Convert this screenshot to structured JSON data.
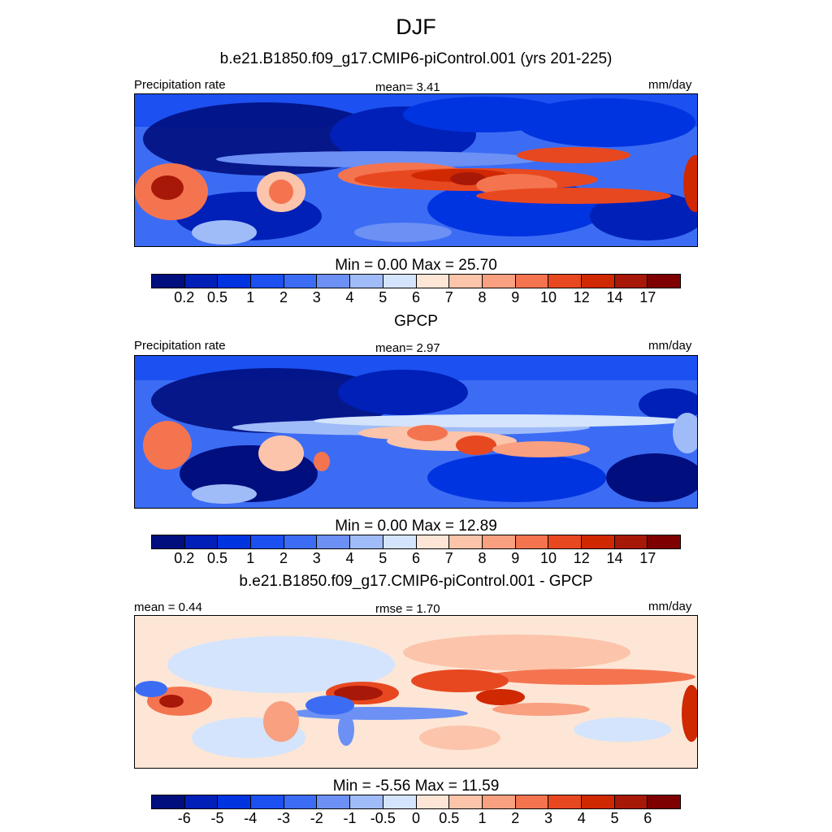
{
  "title": "DJF",
  "panels": [
    {
      "subtitle": "b.e21.B1850.f09_g17.CMIP6-piControl.001 (yrs 201-225)",
      "left_label": "Precipitation rate",
      "center_label": "mean=   3.41",
      "right_label": "mm/day",
      "minmax": "Min =   0.00 Max =  25.70"
    },
    {
      "subtitle": "GPCP",
      "left_label": "Precipitation rate",
      "center_label": "mean=   2.97",
      "right_label": "mm/day",
      "minmax": "Min =   0.00 Max =  12.89"
    },
    {
      "subtitle": "b.e21.B1850.f09_g17.CMIP6-piControl.001 - GPCP",
      "left_label": "mean =   0.44",
      "center_label": "rmse =   1.70",
      "right_label": "mm/day",
      "minmax": "Min =  -5.56 Max =  11.59"
    }
  ],
  "colorbar": {
    "colors": [
      "#000e7e",
      "#0020b8",
      "#0034e0",
      "#1c50f0",
      "#3c6cf4",
      "#6c90f4",
      "#a0bcf8",
      "#d4e4fc",
      "#fde6d6",
      "#fcc4aa",
      "#f8a080",
      "#f47450",
      "#e84820",
      "#d02800",
      "#a81808",
      "#7e0000"
    ],
    "precip_ticks": [
      "0.2",
      "0.5",
      "1",
      "2",
      "3",
      "4",
      "5",
      "6",
      "7",
      "8",
      "9",
      "10",
      "12",
      "14",
      "17"
    ],
    "diff_ticks": [
      "-6",
      "-5",
      "-4",
      "-3",
      "-2",
      "-1",
      "-0.5",
      "0",
      "0.5",
      "1",
      "2",
      "3",
      "4",
      "5",
      "6"
    ]
  }
}
